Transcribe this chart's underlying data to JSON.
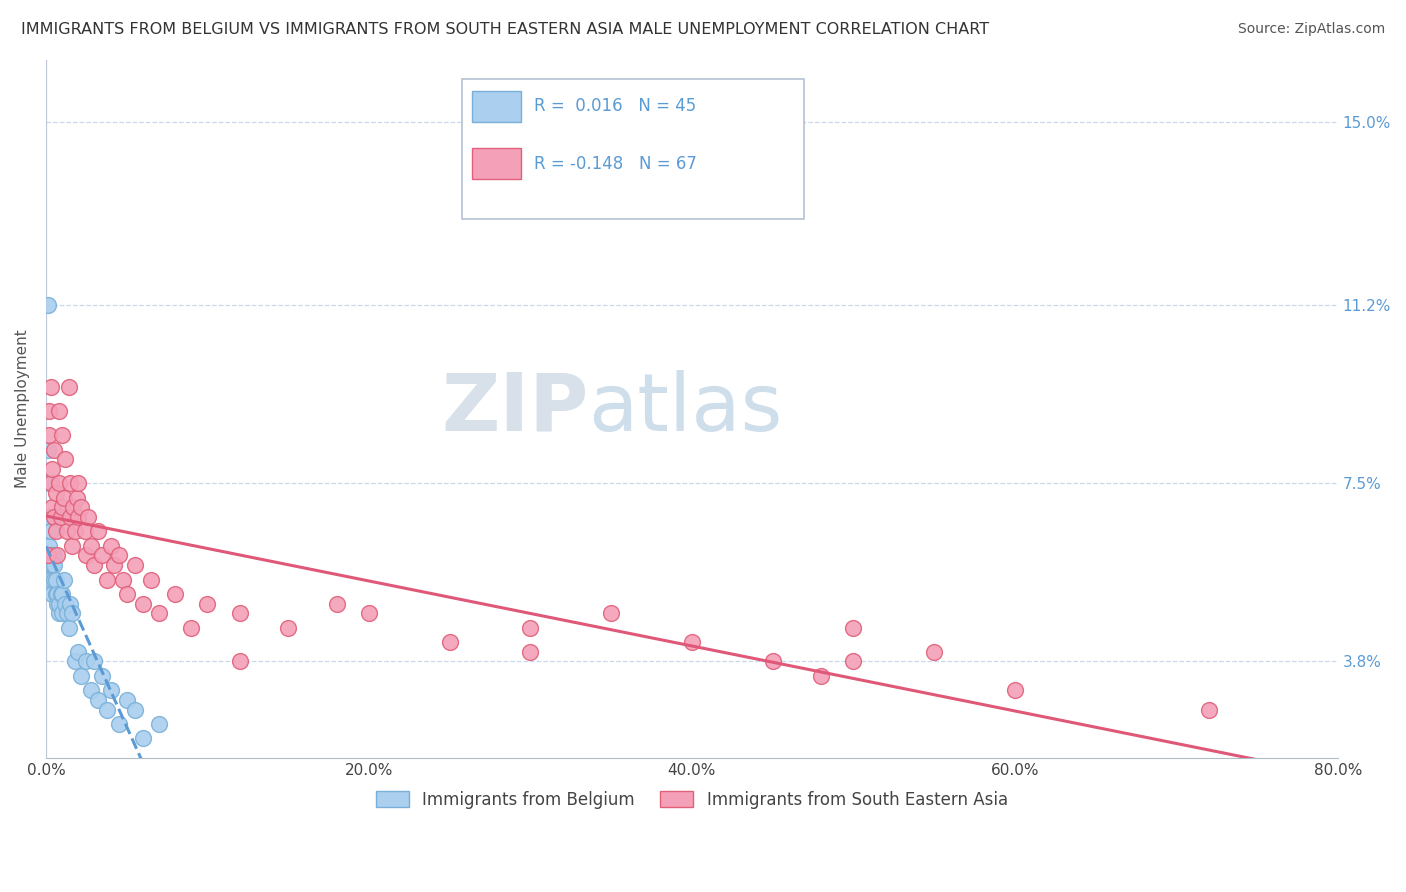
{
  "title": "IMMIGRANTS FROM BELGIUM VS IMMIGRANTS FROM SOUTH EASTERN ASIA MALE UNEMPLOYMENT CORRELATION CHART",
  "source": "Source: ZipAtlas.com",
  "ylabel": "Male Unemployment",
  "xlim": [
    0.0,
    0.8
  ],
  "ylim": [
    0.018,
    0.163
  ],
  "yticks": [
    0.038,
    0.075,
    0.112,
    0.15
  ],
  "ytick_labels": [
    "3.8%",
    "7.5%",
    "11.2%",
    "15.0%"
  ],
  "xticks": [
    0.0,
    0.2,
    0.4,
    0.6,
    0.8
  ],
  "xtick_labels": [
    "0.0%",
    "20.0%",
    "40.0%",
    "60.0%",
    "80.0%"
  ],
  "belgium": {
    "name": "Immigrants from Belgium",
    "color": "#aacfef",
    "edge_color": "#7ab0d8",
    "R": 0.016,
    "N": 45,
    "trend_color": "#5b9bd5",
    "trend_style": "--",
    "x": [
      0.001,
      0.001,
      0.002,
      0.002,
      0.002,
      0.003,
      0.003,
      0.003,
      0.003,
      0.004,
      0.004,
      0.004,
      0.005,
      0.005,
      0.005,
      0.006,
      0.006,
      0.007,
      0.007,
      0.008,
      0.008,
      0.009,
      0.01,
      0.01,
      0.011,
      0.012,
      0.013,
      0.014,
      0.015,
      0.016,
      0.018,
      0.02,
      0.022,
      0.025,
      0.028,
      0.03,
      0.032,
      0.035,
      0.038,
      0.04,
      0.045,
      0.05,
      0.055,
      0.06,
      0.07
    ],
    "y": [
      0.112,
      0.082,
      0.075,
      0.068,
      0.062,
      0.065,
      0.06,
      0.058,
      0.055,
      0.06,
      0.058,
      0.052,
      0.06,
      0.058,
      0.055,
      0.052,
      0.055,
      0.05,
      0.052,
      0.048,
      0.05,
      0.052,
      0.048,
      0.052,
      0.055,
      0.05,
      0.048,
      0.045,
      0.05,
      0.048,
      0.038,
      0.04,
      0.035,
      0.038,
      0.032,
      0.038,
      0.03,
      0.035,
      0.028,
      0.032,
      0.025,
      0.03,
      0.028,
      0.022,
      0.025
    ]
  },
  "sea": {
    "name": "Immigrants from South Eastern Asia",
    "color": "#f4a0b8",
    "edge_color": "#e0607a",
    "R": -0.148,
    "N": 67,
    "trend_color": "#e05878",
    "trend_style": "-",
    "x": [
      0.001,
      0.002,
      0.002,
      0.003,
      0.003,
      0.004,
      0.004,
      0.005,
      0.005,
      0.006,
      0.006,
      0.007,
      0.008,
      0.008,
      0.009,
      0.01,
      0.01,
      0.011,
      0.012,
      0.013,
      0.014,
      0.015,
      0.015,
      0.016,
      0.017,
      0.018,
      0.019,
      0.02,
      0.02,
      0.022,
      0.024,
      0.025,
      0.026,
      0.028,
      0.03,
      0.032,
      0.035,
      0.038,
      0.04,
      0.042,
      0.045,
      0.048,
      0.05,
      0.055,
      0.06,
      0.065,
      0.07,
      0.08,
      0.09,
      0.1,
      0.12,
      0.15,
      0.18,
      0.2,
      0.25,
      0.3,
      0.35,
      0.4,
      0.45,
      0.5,
      0.12,
      0.3,
      0.48,
      0.5,
      0.55,
      0.6,
      0.72
    ],
    "y": [
      0.06,
      0.085,
      0.09,
      0.075,
      0.095,
      0.07,
      0.078,
      0.082,
      0.068,
      0.065,
      0.073,
      0.06,
      0.09,
      0.075,
      0.068,
      0.085,
      0.07,
      0.072,
      0.08,
      0.065,
      0.095,
      0.068,
      0.075,
      0.062,
      0.07,
      0.065,
      0.072,
      0.068,
      0.075,
      0.07,
      0.065,
      0.06,
      0.068,
      0.062,
      0.058,
      0.065,
      0.06,
      0.055,
      0.062,
      0.058,
      0.06,
      0.055,
      0.052,
      0.058,
      0.05,
      0.055,
      0.048,
      0.052,
      0.045,
      0.05,
      0.048,
      0.045,
      0.05,
      0.048,
      0.042,
      0.045,
      0.048,
      0.042,
      0.038,
      0.045,
      0.038,
      0.04,
      0.035,
      0.038,
      0.04,
      0.032,
      0.028
    ]
  },
  "legend_r_labels": [
    "R =  0.016",
    "R = -0.148"
  ],
  "legend_n_labels": [
    "N = 45",
    "N = 67"
  ],
  "watermark_zip": "ZIP",
  "watermark_atlas": "atlas",
  "background_color": "#ffffff",
  "grid_color": "#c8d8ea",
  "title_fontsize": 11.5,
  "axis_label_fontsize": 11,
  "tick_fontsize": 11,
  "legend_fontsize": 12,
  "source_fontsize": 10
}
